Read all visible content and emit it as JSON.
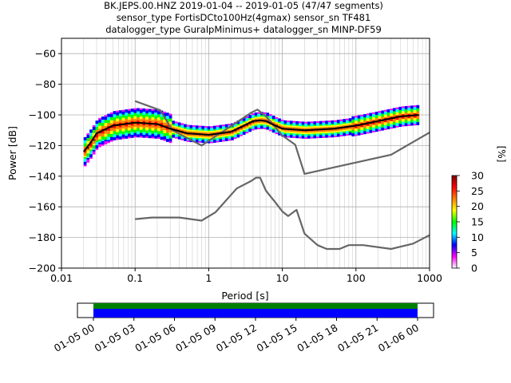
{
  "chart_data": {
    "type": "heatmap",
    "title_lines": [
      "BK.JEPS.00.HNZ   2019-01-04 -- 2019-01-05  (47/47 segments)",
      "sensor_type FortisDCto100Hz(4gmax) sensor_sn TF481",
      "datalogger_type GuralpMinimus+ datalogger_sn MINP-DF59"
    ],
    "xlabel": "Period [s]",
    "ylabel": "Power [dB]",
    "xscale": "log",
    "xlim": [
      0.01,
      1000
    ],
    "ylim": [
      -200,
      -50
    ],
    "x_ticks": [
      {
        "v": 0.01,
        "label": "0.01"
      },
      {
        "v": 0.1,
        "label": "0.1"
      },
      {
        "v": 1,
        "label": "1"
      },
      {
        "v": 10,
        "label": "10"
      },
      {
        "v": 100,
        "label": "100"
      },
      {
        "v": 1000,
        "label": "1000"
      }
    ],
    "y_ticks": [
      {
        "v": -60,
        "label": "−60"
      },
      {
        "v": -80,
        "label": "−80"
      },
      {
        "v": -100,
        "label": "−100"
      },
      {
        "v": -120,
        "label": "−120"
      },
      {
        "v": -140,
        "label": "−140"
      },
      {
        "v": -160,
        "label": "−160"
      },
      {
        "v": -180,
        "label": "−180"
      },
      {
        "v": -200,
        "label": "−200"
      }
    ],
    "grid": true,
    "noise_models": [
      {
        "points": [
          [
            0.1,
            -91
          ],
          [
            0.22,
            -97
          ],
          [
            0.32,
            -110
          ],
          [
            0.8,
            -120
          ],
          [
            3.8,
            -98.5
          ],
          [
            4.6,
            -96.5
          ],
          [
            6,
            -101
          ],
          [
            8,
            -108
          ],
          [
            10,
            -113.5
          ],
          [
            15,
            -119.5
          ],
          [
            20,
            -138.5
          ],
          [
            300,
            -126
          ],
          [
            1000,
            -111.5
          ]
        ]
      },
      {
        "points": [
          [
            0.1,
            -168
          ],
          [
            0.17,
            -167
          ],
          [
            0.4,
            -167
          ],
          [
            0.8,
            -169
          ],
          [
            1.24,
            -163.5
          ],
          [
            2.4,
            -148
          ],
          [
            3.8,
            -143
          ],
          [
            4.4,
            -141
          ],
          [
            5,
            -141
          ],
          [
            6,
            -149.5
          ],
          [
            8,
            -157
          ],
          [
            10,
            -163
          ],
          [
            12,
            -166
          ],
          [
            15.6,
            -162
          ],
          [
            20,
            -177.5
          ],
          [
            30,
            -185
          ],
          [
            40,
            -187.5
          ],
          [
            60,
            -187.5
          ],
          [
            80,
            -185
          ],
          [
            100,
            -185
          ],
          [
            125,
            -185
          ],
          [
            300,
            -187.5
          ],
          [
            600,
            -184
          ],
          [
            1000,
            -178.5
          ]
        ]
      }
    ],
    "mean_curve": [
      [
        0.02,
        -124
      ],
      [
        0.025,
        -118
      ],
      [
        0.03,
        -112
      ],
      [
        0.05,
        -107
      ],
      [
        0.1,
        -105
      ],
      [
        0.2,
        -106
      ],
      [
        0.3,
        -109
      ],
      [
        0.5,
        -112
      ],
      [
        1,
        -113
      ],
      [
        2,
        -111
      ],
      [
        3,
        -107
      ],
      [
        4,
        -104
      ],
      [
        5,
        -103.5
      ],
      [
        6,
        -104
      ],
      [
        8,
        -107
      ],
      [
        10,
        -109
      ],
      [
        20,
        -110
      ],
      [
        50,
        -109
      ],
      [
        100,
        -107
      ],
      [
        200,
        -104
      ],
      [
        400,
        -101
      ],
      [
        700,
        -100
      ]
    ],
    "colorbar": {
      "label": "[%]",
      "ticks": [
        0,
        5,
        10,
        15,
        20,
        25,
        30
      ],
      "range": [
        0,
        30
      ],
      "colors": [
        "#ffffff",
        "#ff00ff",
        "#0000ff",
        "#00ffff",
        "#00ff00",
        "#ffff00",
        "#ff8000",
        "#ff0000",
        "#800000"
      ]
    },
    "segments": {
      "tick_labels": [
        "01-05 00",
        "01-05 03",
        "01-05 06",
        "01-05 09",
        "01-05 12",
        "01-05 15",
        "01-05 18",
        "01-05 21",
        "01-06 00"
      ],
      "colors": [
        "#008000",
        "#0000ff"
      ]
    }
  }
}
